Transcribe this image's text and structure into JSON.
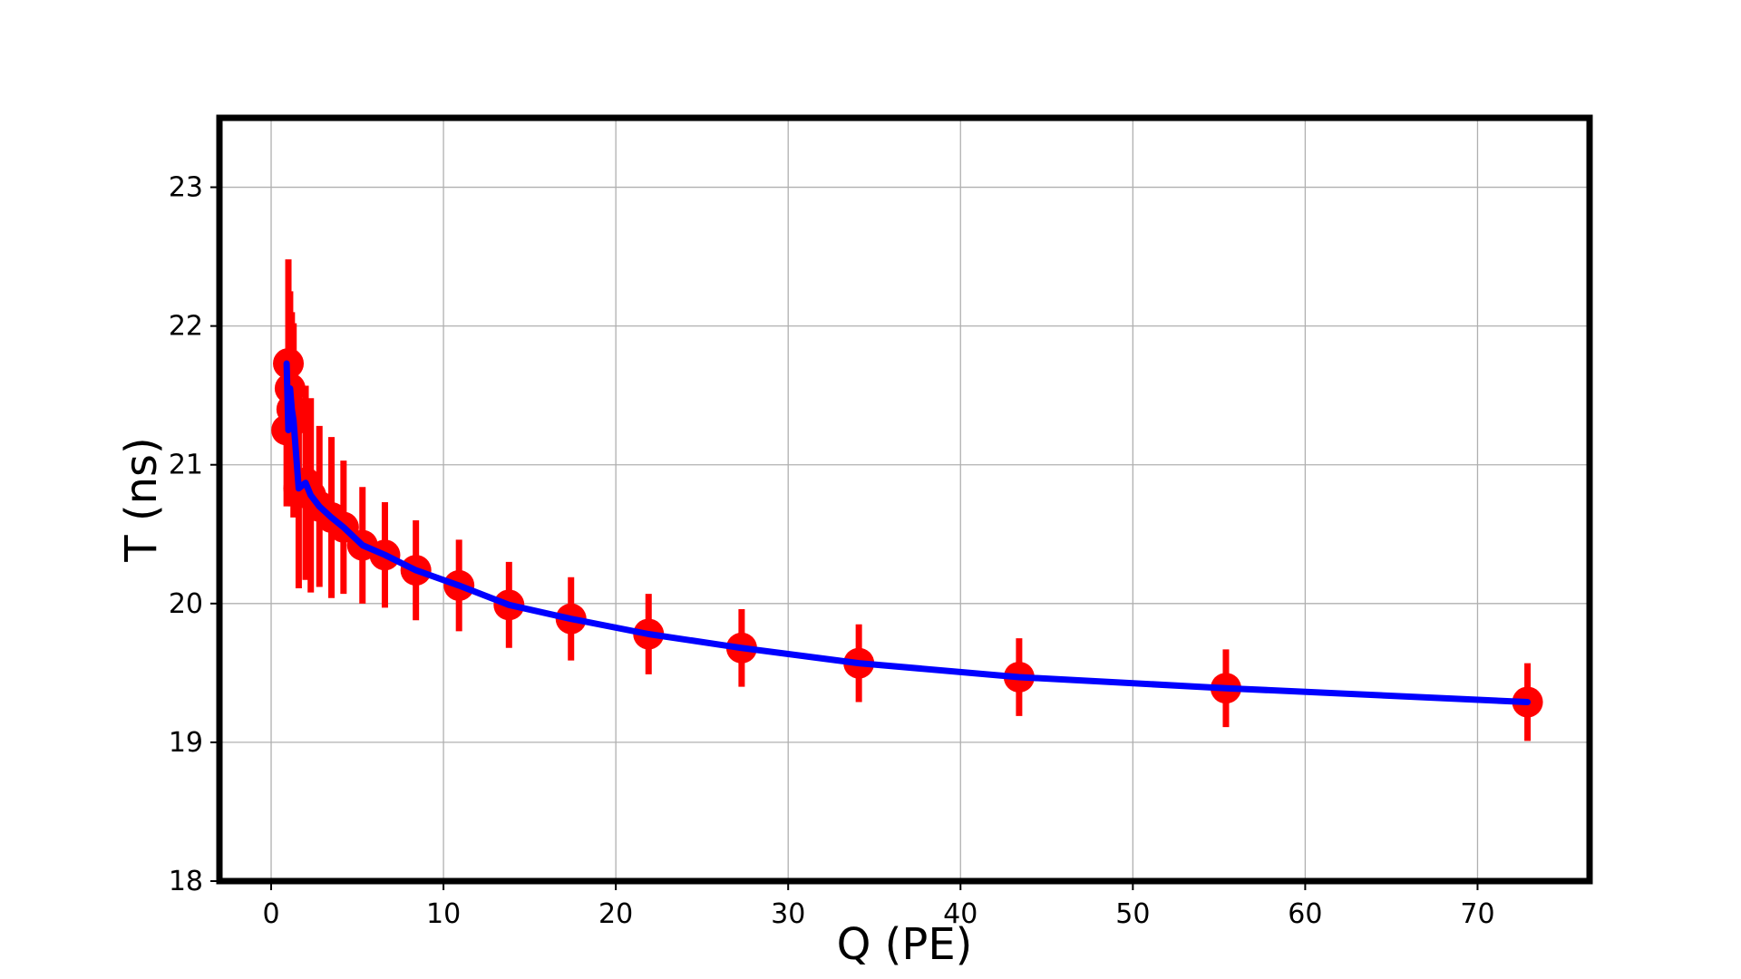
{
  "chart_data": {
    "type": "scatter",
    "title": "",
    "xlabel": "Q (PE)",
    "ylabel": "T (ns)",
    "xlim": [
      -3.0,
      76.5
    ],
    "ylim": [
      18,
      23.5
    ],
    "x_ticks": [
      0,
      10,
      20,
      30,
      40,
      50,
      60,
      70
    ],
    "y_ticks": [
      18,
      19,
      20,
      21,
      22,
      23
    ],
    "grid": true,
    "legend": "none",
    "series": [
      {
        "kind": "errorbar",
        "color": "#ff0000",
        "x": [
          0.9,
          1.0,
          1.1,
          1.2,
          1.3,
          1.6,
          2.0,
          2.3,
          2.8,
          3.5,
          4.2,
          5.3,
          6.6,
          8.4,
          10.9,
          13.8,
          17.4,
          21.9,
          27.3,
          34.1,
          43.4,
          55.4,
          72.9
        ],
        "y": [
          21.25,
          21.73,
          21.55,
          21.4,
          21.32,
          20.83,
          20.87,
          20.78,
          20.7,
          20.62,
          20.55,
          20.42,
          20.35,
          20.24,
          20.13,
          19.99,
          19.89,
          19.78,
          19.68,
          19.57,
          19.47,
          19.39,
          19.29
        ],
        "yerr": [
          0.55,
          0.75,
          0.7,
          0.7,
          0.7,
          0.72,
          0.7,
          0.7,
          0.58,
          0.58,
          0.48,
          0.42,
          0.38,
          0.36,
          0.33,
          0.31,
          0.3,
          0.29,
          0.28,
          0.28,
          0.28,
          0.28,
          0.28
        ]
      },
      {
        "kind": "line",
        "color": "#0000ff",
        "x": [
          0.9,
          1.0,
          1.1,
          1.2,
          1.3,
          1.6,
          2.0,
          2.3,
          2.8,
          3.5,
          4.2,
          5.3,
          6.6,
          8.4,
          10.9,
          13.8,
          17.4,
          21.9,
          27.3,
          34.1,
          43.4,
          55.4,
          72.9
        ],
        "y": [
          21.73,
          21.25,
          21.55,
          21.4,
          21.32,
          20.83,
          20.87,
          20.78,
          20.7,
          20.62,
          20.55,
          20.42,
          20.35,
          20.24,
          20.13,
          19.99,
          19.89,
          19.78,
          19.68,
          19.57,
          19.47,
          19.39,
          19.29
        ]
      }
    ]
  }
}
